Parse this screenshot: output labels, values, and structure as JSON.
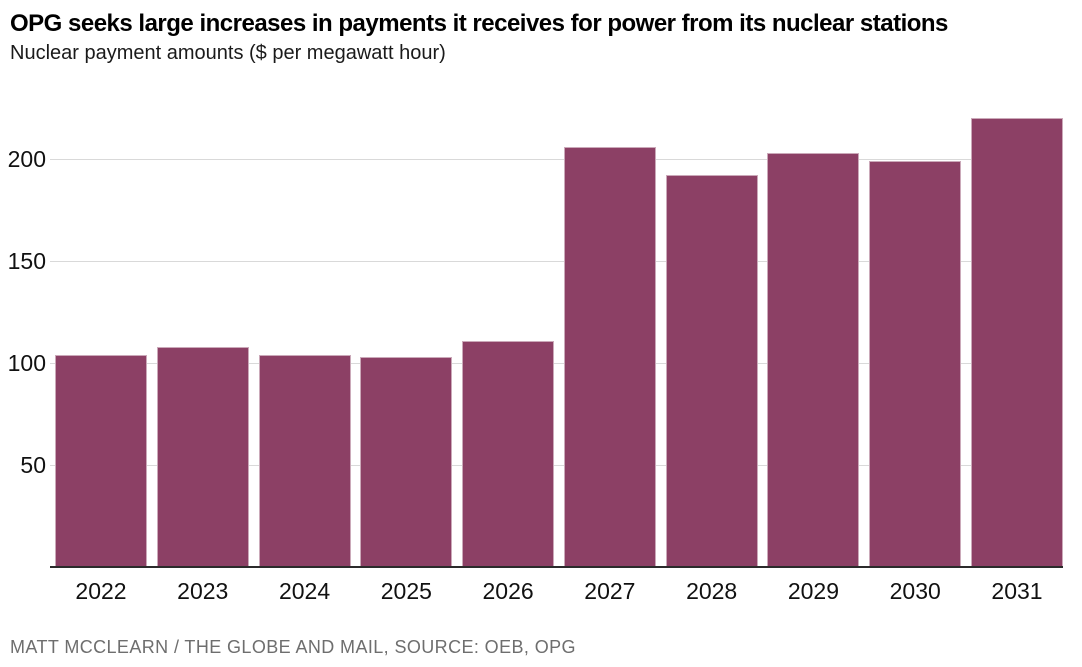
{
  "header": {
    "title": "OPG seeks large increases in payments it receives for power from its nuclear stations",
    "subtitle": "Nuclear payment amounts ($ per megawatt hour)"
  },
  "chart_data": {
    "type": "bar",
    "title": "OPG seeks large increases in payments it receives for power from its nuclear stations",
    "subtitle": "Nuclear payment amounts ($ per megawatt hour)",
    "categories": [
      "2022",
      "2023",
      "2024",
      "2025",
      "2026",
      "2027",
      "2028",
      "2029",
      "2030",
      "2031"
    ],
    "values": [
      104,
      108,
      104,
      103,
      111,
      206,
      192,
      203,
      199,
      220
    ],
    "xlabel": "",
    "ylabel": "$ per megawatt hour",
    "ylim": [
      0,
      225
    ],
    "yticks": [
      50,
      100,
      150,
      200
    ],
    "grid": "horizontal",
    "legend_position": "none",
    "bar_color": "#8c4065",
    "gridline_color": "#d9d9d9",
    "axis_line_color": "#2b2b2b",
    "text_color": "#111111"
  },
  "footer": {
    "credit": "MATT MCCLEARN / THE GLOBE AND MAIL, SOURCE: OEB, OPG"
  }
}
